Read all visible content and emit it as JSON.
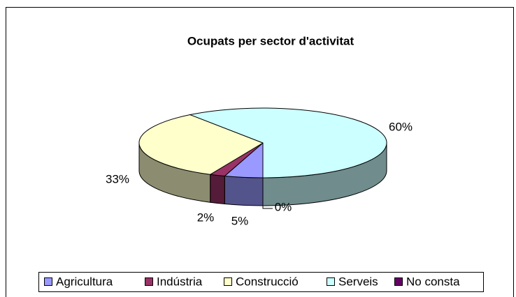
{
  "chart_data": {
    "type": "pie",
    "title": "Ocupats per sector d'activitat",
    "categories": [
      "Agricultura",
      "Indústria",
      "Construcció",
      "Serveis",
      "No consta"
    ],
    "values": [
      5,
      2,
      33,
      60,
      0
    ],
    "value_labels": [
      "5%",
      "2%",
      "33%",
      "60%",
      "0%"
    ],
    "colors": [
      "#9999ff",
      "#993366",
      "#ffffcc",
      "#ccffff",
      "#660066"
    ],
    "legend": "bottom"
  }
}
